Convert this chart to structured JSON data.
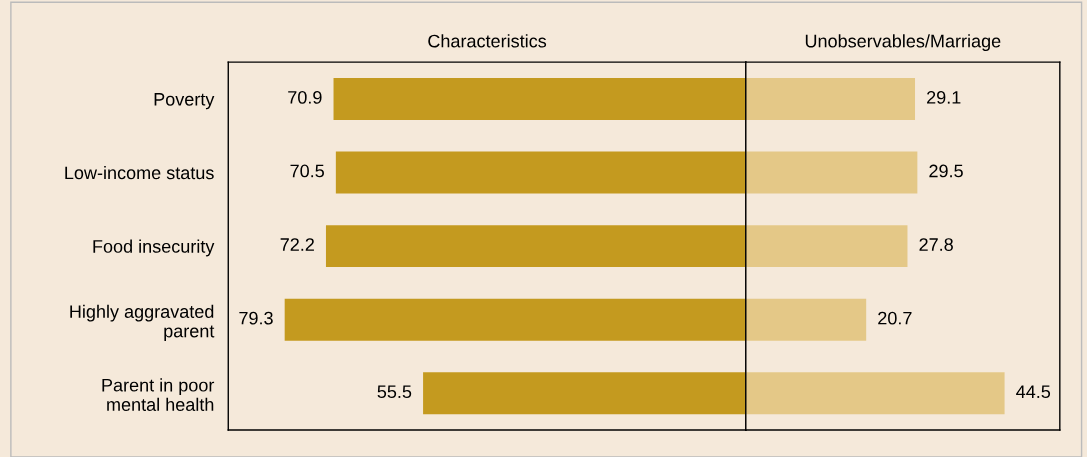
{
  "chart_data": [
    {
      "type": "bar",
      "orientation": "horizontal",
      "categories": [
        "Poverty",
        "Low-income status",
        "Food insecurity",
        "Highly aggravated\nparent",
        "Parent in poor\nmental health"
      ],
      "series": [
        {
          "name": "Characteristics",
          "color": "#c49a1f",
          "values": [
            70.9,
            70.5,
            72.2,
            79.3,
            55.5
          ]
        }
      ],
      "xlim": [
        89,
        0
      ],
      "tick_labels": "y",
      "data_labels": true
    },
    {
      "type": "bar",
      "orientation": "horizontal",
      "categories": [
        null,
        null,
        null,
        null,
        null
      ],
      "series": [
        {
          "name": "Unobservables/Marriage",
          "color": "#e4c887",
          "values": [
            29.1,
            29.5,
            27.8,
            20.7,
            44.5
          ]
        }
      ],
      "xlim": [
        0,
        54
      ],
      "tick_labels": false,
      "data_labels": true
    }
  ]
}
